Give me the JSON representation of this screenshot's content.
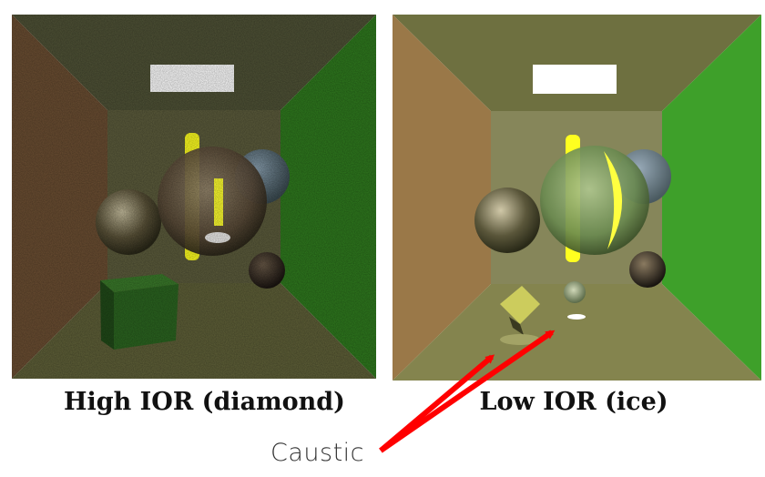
{
  "panels": {
    "left": {
      "caption": "High IOR (diamond)"
    },
    "right": {
      "caption": "Low IOR (ice)"
    }
  },
  "annotation": {
    "label": "Caustic",
    "arrow_color": "#ff0000"
  },
  "colors": {
    "red_wall": "#8a5a3a",
    "green_wall": "#2f8a1e",
    "back_wall": "#8a8a5a",
    "floor": "#7a7a4a",
    "light": "#ffffff",
    "light_bar": "#ffff33"
  }
}
